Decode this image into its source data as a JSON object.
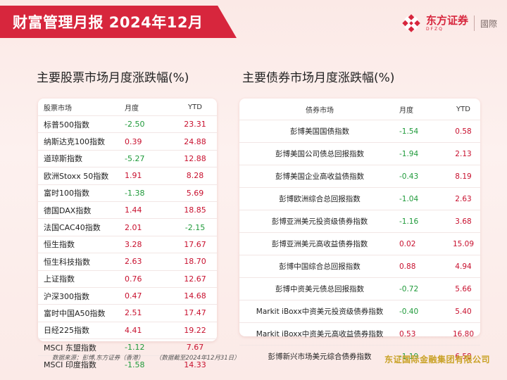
{
  "header": {
    "title": "财富管理月报  2024年12月",
    "logo_cn": "东方证券",
    "logo_en": "DFZQ",
    "logo_intl": "國際"
  },
  "colors": {
    "accent": "#d7263d",
    "positive": "#c8102e",
    "negative": "#1f9a3a",
    "gold": "#c9a227"
  },
  "stocks": {
    "title": "主要股票市场月度涨跌幅(%)",
    "headers": {
      "name": "股票市场",
      "month": "月度",
      "ytd": "YTD"
    },
    "rows": [
      {
        "name": "标普500指数",
        "month": "-2.50",
        "ytd": "23.31"
      },
      {
        "name": "纳斯达克100指数",
        "month": "0.39",
        "ytd": "24.88"
      },
      {
        "name": "道琼斯指数",
        "month": "-5.27",
        "ytd": "12.88"
      },
      {
        "name": "欧洲Stoxx 50指数",
        "month": "1.91",
        "ytd": "8.28"
      },
      {
        "name": "富时100指数",
        "month": "-1.38",
        "ytd": "5.69"
      },
      {
        "name": "德国DAX指数",
        "month": "1.44",
        "ytd": "18.85"
      },
      {
        "name": "法国CAC40指数",
        "month": "2.01",
        "ytd": "-2.15"
      },
      {
        "name": "恒生指数",
        "month": "3.28",
        "ytd": "17.67"
      },
      {
        "name": "恒生科技指数",
        "month": "2.63",
        "ytd": "18.70"
      },
      {
        "name": "上证指数",
        "month": "0.76",
        "ytd": "12.67"
      },
      {
        "name": "沪深300指数",
        "month": "0.47",
        "ytd": "14.68"
      },
      {
        "name": "富时中国A50指数",
        "month": "2.51",
        "ytd": "17.47"
      },
      {
        "name": "日经225指数",
        "month": "4.41",
        "ytd": "19.22"
      },
      {
        "name": "MSCI 东盟指数",
        "month": "-1.12",
        "ytd": "7.67"
      },
      {
        "name": "MSCI 印度指数",
        "month": "-1.58",
        "ytd": "14.33"
      }
    ]
  },
  "bonds": {
    "title": "主要债券市场月度涨跌幅(%)",
    "headers": {
      "name": "债券市场",
      "month": "月度",
      "ytd": "YTD"
    },
    "rows": [
      {
        "name": "彭博美国国债指数",
        "month": "-1.54",
        "ytd": "0.58"
      },
      {
        "name": "彭博美国公司债总回报指数",
        "month": "-1.94",
        "ytd": "2.13"
      },
      {
        "name": "彭博美国企业高收益债指数",
        "month": "-0.43",
        "ytd": "8.19"
      },
      {
        "name": "彭博欧洲综合总回报指数",
        "month": "-1.04",
        "ytd": "2.63"
      },
      {
        "name": "彭博亚洲美元投资级债券指数",
        "month": "-1.16",
        "ytd": "3.68"
      },
      {
        "name": "彭博亚洲美元高收益债券指数",
        "month": "0.02",
        "ytd": "15.09"
      },
      {
        "name": "彭博中国综合总回报指数",
        "month": "0.88",
        "ytd": "4.94"
      },
      {
        "name": "彭博中资美元债总回报指数",
        "month": "-0.72",
        "ytd": "5.66"
      },
      {
        "name": "Markit iBoxx中资美元投资级债券指数",
        "month": "-0.40",
        "ytd": "5.40"
      },
      {
        "name": "Markit iBoxx中资美元高收益债券指数",
        "month": "0.53",
        "ytd": "16.80"
      },
      {
        "name": "彭博新兴市场美元综合债券指数",
        "month": "-1.19",
        "ytd": "6.58"
      }
    ]
  },
  "footer": {
    "source": "数据来源：彭博,东方证券（香港）",
    "date_note": "（数据截至2024年12月31日）",
    "company": "东证国际金融集团有限公司"
  }
}
